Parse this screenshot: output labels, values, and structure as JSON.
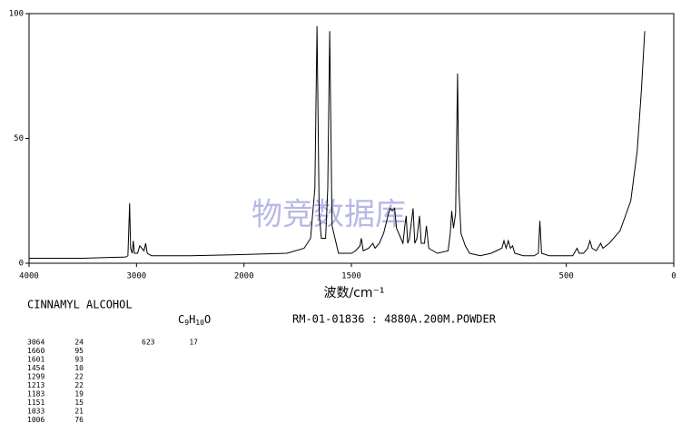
{
  "chart_data": {
    "type": "line",
    "xlabel": "波数/cm⁻¹",
    "watermark": "物竞数据库",
    "xlim": [
      4000,
      0
    ],
    "xscale_break": 2000,
    "xscale_ratio": 2,
    "xticks": [
      4000,
      3000,
      2000,
      1500,
      500,
      0
    ],
    "ylim": [
      0,
      100
    ],
    "yticks": [
      0,
      50,
      100
    ],
    "x": [
      4000,
      3500,
      3100,
      3080,
      3064,
      3055,
      3040,
      3030,
      3020,
      2990,
      2970,
      2950,
      2930,
      2915,
      2900,
      2860,
      2800,
      2500,
      2000,
      1800,
      1720,
      1690,
      1670,
      1660,
      1650,
      1640,
      1620,
      1610,
      1601,
      1590,
      1560,
      1520,
      1500,
      1480,
      1460,
      1454,
      1445,
      1420,
      1400,
      1390,
      1370,
      1350,
      1330,
      1320,
      1310,
      1299,
      1290,
      1260,
      1250,
      1245,
      1238,
      1230,
      1213,
      1205,
      1195,
      1183,
      1175,
      1160,
      1151,
      1140,
      1100,
      1050,
      1040,
      1033,
      1025,
      1015,
      1006,
      1000,
      990,
      970,
      950,
      900,
      850,
      800,
      790,
      780,
      770,
      760,
      750,
      740,
      700,
      650,
      630,
      623,
      615,
      580,
      520,
      470,
      450,
      440,
      420,
      400,
      390,
      380,
      360,
      340,
      330,
      300,
      250,
      200,
      170,
      150,
      135
    ],
    "series": [
      {
        "color": "#000000",
        "values": [
          2,
          2,
          2.5,
          3,
          24,
          6,
          4,
          9,
          4,
          4,
          7,
          6,
          5,
          8,
          4,
          3,
          3,
          3,
          3.5,
          4,
          6,
          10,
          30,
          95,
          20,
          10,
          10,
          30,
          93,
          15,
          4,
          4,
          4,
          5,
          7,
          10,
          5,
          6,
          8,
          6,
          8,
          12,
          19,
          22,
          21,
          22,
          14,
          8,
          16,
          19,
          8,
          10,
          22,
          8,
          10,
          19,
          8,
          8,
          15,
          6,
          4,
          5,
          12,
          21,
          14,
          20,
          76,
          30,
          12,
          7,
          4,
          3,
          4,
          6,
          9,
          6,
          9,
          6,
          7,
          4,
          3,
          3,
          4,
          17,
          4,
          3,
          3,
          3,
          6,
          4,
          4,
          6,
          9,
          6,
          5,
          8,
          6,
          8,
          13,
          25,
          45,
          70,
          93
        ]
      }
    ]
  },
  "compound": "CINNAMYL ALCOHOL",
  "formula": [
    "C",
    "9",
    "H",
    "10",
    "O"
  ],
  "sample": "RM-01-01836 : 4880A.200M.POWDER",
  "peaks": [
    [
      3064,
      24
    ],
    [
      1660,
      95
    ],
    [
      1601,
      93
    ],
    [
      1454,
      10
    ],
    [
      1299,
      22
    ],
    [
      1213,
      22
    ],
    [
      1183,
      19
    ],
    [
      1151,
      15
    ],
    [
      1033,
      21
    ],
    [
      1006,
      76
    ]
  ],
  "peaks2": [
    [
      623,
      17
    ]
  ]
}
